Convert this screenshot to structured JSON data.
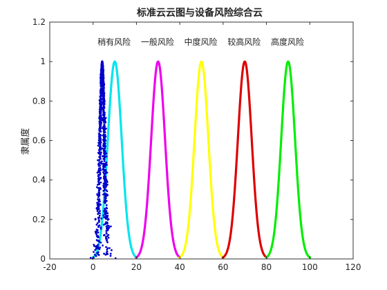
{
  "chart_data": {
    "type": "line",
    "title": "标准云云图与设备风险综合云",
    "xlabel": "",
    "ylabel": "隶属度",
    "xlim": [
      -20,
      120
    ],
    "ylim": [
      0,
      1.2
    ],
    "xticks": [
      -20,
      0,
      20,
      40,
      60,
      80,
      100,
      120
    ],
    "yticks": [
      0,
      0.2,
      0.4,
      0.6,
      0.8,
      1,
      1.2
    ],
    "grid": false,
    "series": [
      {
        "name": "稍有风险",
        "color": "#00e5ee",
        "ex": 10,
        "en": 3.2
      },
      {
        "name": "一般风险",
        "color": "#ee00ee",
        "ex": 30,
        "en": 3.2
      },
      {
        "name": "中度风险",
        "color": "#ffff00",
        "ex": 50,
        "en": 3.2
      },
      {
        "name": "较高风险",
        "color": "#dd0000",
        "ex": 70,
        "en": 3.2
      },
      {
        "name": "高度风险",
        "color": "#00ee00",
        "ex": 90,
        "en": 3.2
      }
    ],
    "composite_cloud": {
      "color": "#0000cc",
      "ex": 4.2,
      "en": 1.0,
      "he": 0.35
    }
  }
}
